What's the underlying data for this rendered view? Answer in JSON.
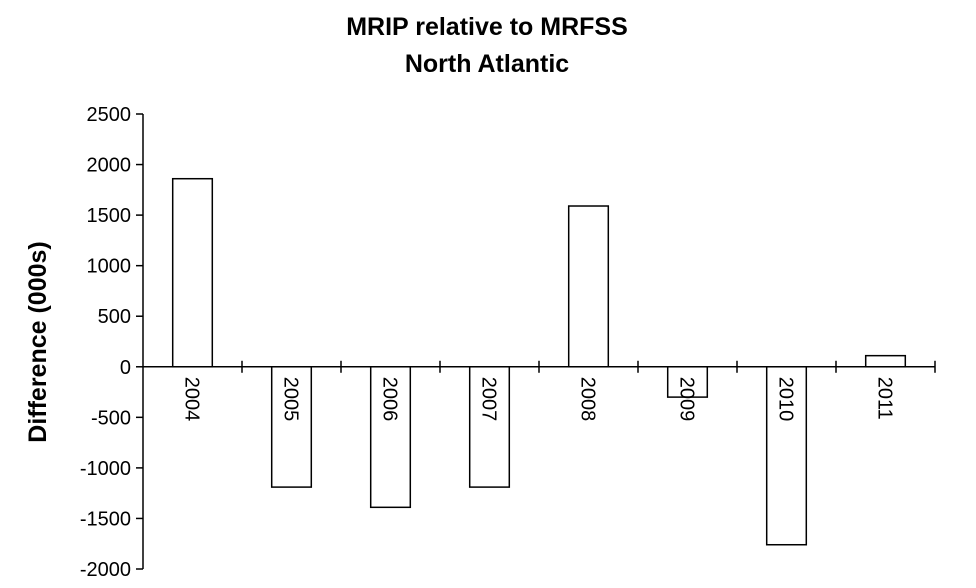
{
  "chart_data": {
    "type": "bar",
    "title": [
      "MRIP relative to MRFSS",
      "North Atlantic"
    ],
    "ylabel": "Difference (000s)",
    "xlabel": "",
    "categories": [
      "2004",
      "2005",
      "2006",
      "2007",
      "2008",
      "2009",
      "2010",
      "2011"
    ],
    "values": [
      1860,
      -1190,
      -1390,
      -1190,
      1590,
      -300,
      -1760,
      110
    ],
    "ylim": [
      -2000,
      2500
    ],
    "yticks": [
      2500,
      2000,
      1500,
      1000,
      500,
      0,
      -500,
      -1000,
      -1500,
      -2000
    ],
    "grid": false,
    "legend": "none",
    "bar_fill": "#ffffff",
    "bar_stroke": "#000000"
  }
}
